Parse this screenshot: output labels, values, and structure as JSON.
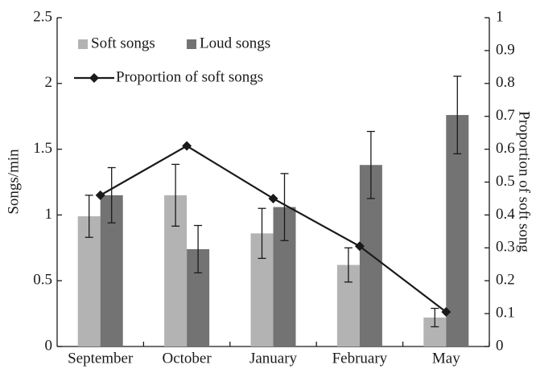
{
  "chart_data": {
    "type": "bar",
    "categories": [
      "September",
      "October",
      "January",
      "February",
      "May"
    ],
    "series": [
      {
        "name": "Soft songs",
        "color": "#b3b3b3",
        "values": [
          0.99,
          1.15,
          0.86,
          0.62,
          0.22
        ],
        "errors": [
          0.16,
          0.235,
          0.19,
          0.13,
          0.07
        ]
      },
      {
        "name": "Loud songs",
        "color": "#737373",
        "values": [
          1.15,
          0.74,
          1.06,
          1.38,
          1.76
        ],
        "errors": [
          0.21,
          0.18,
          0.255,
          0.255,
          0.295
        ]
      },
      {
        "name": "Proportion of soft songs",
        "color": "#1a1a1a",
        "type": "line",
        "axis": "y2",
        "values": [
          0.46,
          0.61,
          0.45,
          0.305,
          0.105
        ]
      }
    ],
    "ylabel": "Songs/min",
    "y2label": "Proportion of soft song",
    "ylim": [
      0,
      2.5
    ],
    "yticks": [
      0,
      0.5,
      1,
      1.5,
      2,
      2.5
    ],
    "y2lim": [
      0,
      1
    ],
    "y2ticks": [
      0,
      0.1,
      0.2,
      0.3,
      0.4,
      0.5,
      0.6,
      0.7,
      0.8,
      0.9,
      1
    ],
    "legend": "upper left"
  }
}
